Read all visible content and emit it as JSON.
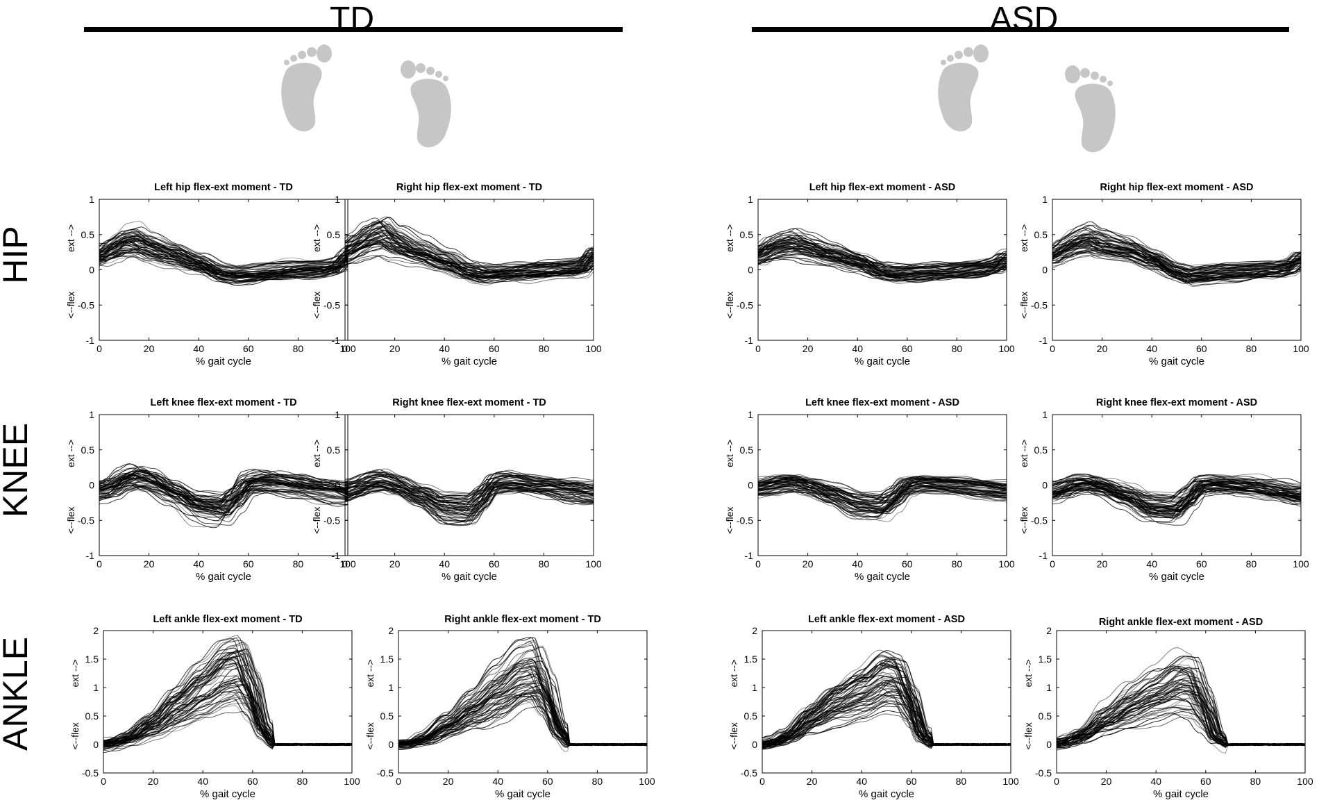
{
  "groups": [
    {
      "name": "TD"
    },
    {
      "name": "ASD"
    }
  ],
  "rows": [
    {
      "label": "HIP"
    },
    {
      "label": "KNEE"
    },
    {
      "label": "ANKLE"
    }
  ],
  "colors": {
    "line": "#000000",
    "axis": "#000000",
    "foot": "#c6c6c6"
  },
  "icons": [
    "left-foot-icon",
    "right-foot-icon"
  ],
  "chart_data": [
    {
      "type": "line",
      "title": "Left hip flex-ext moment - TD",
      "xlabel": "% gait cycle",
      "ylabel_top": "ext -->",
      "ylabel_bottom": "<--flex",
      "xlim": [
        0,
        100
      ],
      "ylim": [
        -1,
        1
      ],
      "xticks": [
        0,
        20,
        40,
        60,
        80,
        100
      ],
      "yticks": [
        -1,
        -0.5,
        0,
        0.5,
        1
      ],
      "pattern": "hip",
      "side": "left",
      "group": "TD",
      "mean": {
        "x": [
          0,
          5,
          10,
          15,
          20,
          30,
          40,
          50,
          55,
          60,
          70,
          80,
          90,
          95,
          100
        ],
        "y": [
          0.2,
          0.3,
          0.4,
          0.42,
          0.33,
          0.22,
          0.1,
          -0.05,
          -0.07,
          -0.05,
          -0.02,
          0,
          0.02,
          0.05,
          0.2
        ]
      },
      "spread": 0.12,
      "n_curves": 60
    },
    {
      "type": "line",
      "title": "Right hip flex-ext moment - TD",
      "xlabel": "% gait cycle",
      "ylabel_top": "ext -->",
      "ylabel_bottom": "<--flex",
      "xlim": [
        0,
        100
      ],
      "ylim": [
        -1,
        1
      ],
      "xticks": [
        0,
        20,
        40,
        60,
        80,
        100
      ],
      "yticks": [
        -1,
        -0.5,
        0,
        0.5,
        1
      ],
      "pattern": "hip",
      "side": "right",
      "group": "TD",
      "mean": {
        "x": [
          0,
          5,
          10,
          15,
          20,
          30,
          40,
          50,
          55,
          60,
          70,
          80,
          90,
          95,
          100
        ],
        "y": [
          0.25,
          0.35,
          0.45,
          0.5,
          0.38,
          0.25,
          0.12,
          -0.02,
          -0.06,
          -0.05,
          -0.03,
          0,
          0.02,
          0.04,
          0.2
        ]
      },
      "spread": 0.12,
      "n_curves": 60
    },
    {
      "type": "line",
      "title": "Left hip flex-ext moment - ASD",
      "xlabel": "% gait cycle",
      "ylabel_top": "ext -->",
      "ylabel_bottom": "<--flex",
      "xlim": [
        0,
        100
      ],
      "ylim": [
        -1,
        1
      ],
      "xticks": [
        0,
        20,
        40,
        60,
        80,
        100
      ],
      "yticks": [
        -1,
        -0.5,
        0,
        0.5,
        1
      ],
      "pattern": "hip",
      "side": "left",
      "group": "ASD",
      "mean": {
        "x": [
          0,
          5,
          10,
          15,
          20,
          30,
          40,
          50,
          55,
          60,
          70,
          80,
          90,
          95,
          100
        ],
        "y": [
          0.2,
          0.3,
          0.35,
          0.38,
          0.32,
          0.22,
          0.12,
          -0.02,
          -0.05,
          -0.04,
          -0.02,
          0,
          0.02,
          0.05,
          0.15
        ]
      },
      "spread": 0.11,
      "n_curves": 60
    },
    {
      "type": "line",
      "title": "Right hip flex-ext moment - ASD",
      "xlabel": "% gait cycle",
      "ylabel_top": "ext -->",
      "ylabel_bottom": "<--flex",
      "xlim": [
        0,
        100
      ],
      "ylim": [
        -1,
        1
      ],
      "xticks": [
        0,
        20,
        40,
        60,
        80,
        100
      ],
      "yticks": [
        -1,
        -0.5,
        0,
        0.5,
        1
      ],
      "pattern": "hip",
      "side": "right",
      "group": "ASD",
      "mean": {
        "x": [
          0,
          5,
          10,
          15,
          20,
          30,
          40,
          50,
          55,
          60,
          70,
          80,
          90,
          95,
          100
        ],
        "y": [
          0.2,
          0.3,
          0.38,
          0.42,
          0.35,
          0.28,
          0.15,
          -0.02,
          -0.08,
          -0.06,
          -0.03,
          -0.02,
          0,
          0.04,
          0.15
        ]
      },
      "spread": 0.11,
      "n_curves": 60
    },
    {
      "type": "line",
      "title": "Left knee flex-ext moment - TD",
      "xlabel": "% gait cycle",
      "ylabel_top": "ext -->",
      "ylabel_bottom": "<--flex",
      "xlim": [
        0,
        100
      ],
      "ylim": [
        -1,
        1
      ],
      "xticks": [
        0,
        20,
        40,
        60,
        80,
        100
      ],
      "yticks": [
        -1,
        -0.5,
        0,
        0.5,
        1
      ],
      "pattern": "knee",
      "side": "left",
      "group": "TD",
      "mean": {
        "x": [
          0,
          5,
          10,
          15,
          20,
          30,
          40,
          50,
          55,
          60,
          65,
          70,
          80,
          90,
          100
        ],
        "y": [
          -0.1,
          -0.05,
          0.05,
          0.1,
          0.05,
          -0.12,
          -0.3,
          -0.35,
          -0.2,
          0,
          0.03,
          0.02,
          -0.02,
          -0.07,
          -0.12
        ]
      },
      "spread": 0.14,
      "n_curves": 60
    },
    {
      "type": "line",
      "title": "Right knee flex-ext moment - TD",
      "xlabel": "% gait cycle",
      "ylabel_top": "ext -->",
      "ylabel_bottom": "<--flex",
      "xlim": [
        0,
        100
      ],
      "ylim": [
        -1,
        1
      ],
      "xticks": [
        0,
        20,
        40,
        60,
        80,
        100
      ],
      "yticks": [
        -1,
        -0.5,
        0,
        0.5,
        1
      ],
      "pattern": "knee",
      "side": "right",
      "group": "TD",
      "mean": {
        "x": [
          0,
          5,
          10,
          15,
          20,
          30,
          40,
          50,
          55,
          60,
          65,
          70,
          80,
          90,
          100
        ],
        "y": [
          -0.1,
          -0.05,
          0.02,
          0.05,
          0.0,
          -0.15,
          -0.32,
          -0.35,
          -0.2,
          0,
          0.03,
          0.02,
          -0.02,
          -0.07,
          -0.12
        ]
      },
      "spread": 0.14,
      "n_curves": 60
    },
    {
      "type": "line",
      "title": "Left knee flex-ext moment - ASD",
      "xlabel": "% gait cycle",
      "ylabel_top": "ext -->",
      "ylabel_bottom": "<--flex",
      "xlim": [
        0,
        100
      ],
      "ylim": [
        -1,
        1
      ],
      "xticks": [
        0,
        20,
        40,
        60,
        80,
        100
      ],
      "yticks": [
        -1,
        -0.5,
        0,
        0.5,
        1
      ],
      "pattern": "knee",
      "side": "left",
      "group": "ASD",
      "mean": {
        "x": [
          0,
          5,
          10,
          15,
          20,
          30,
          40,
          50,
          55,
          60,
          65,
          70,
          80,
          90,
          100
        ],
        "y": [
          -0.05,
          -0.02,
          0.02,
          0.03,
          -0.02,
          -0.15,
          -0.3,
          -0.33,
          -0.2,
          -0.02,
          0.02,
          0.01,
          -0.02,
          -0.06,
          -0.1
        ]
      },
      "spread": 0.11,
      "n_curves": 60
    },
    {
      "type": "line",
      "title": "Right knee flex-ext moment - ASD",
      "xlabel": "% gait cycle",
      "ylabel_top": "ext -->",
      "ylabel_bottom": "<--flex",
      "xlim": [
        0,
        100
      ],
      "ylim": [
        -1,
        1
      ],
      "xticks": [
        0,
        20,
        40,
        60,
        80,
        100
      ],
      "yticks": [
        -1,
        -0.5,
        0,
        0.5,
        1
      ],
      "pattern": "knee",
      "side": "right",
      "group": "ASD",
      "mean": {
        "x": [
          0,
          5,
          10,
          15,
          20,
          30,
          40,
          50,
          55,
          60,
          65,
          70,
          80,
          90,
          100
        ],
        "y": [
          -0.1,
          -0.05,
          0.02,
          0.03,
          -0.02,
          -0.15,
          -0.3,
          -0.32,
          -0.18,
          0,
          0.02,
          0.01,
          -0.02,
          -0.07,
          -0.14
        ]
      },
      "spread": 0.12,
      "n_curves": 60
    },
    {
      "type": "line",
      "title": "Left ankle flex-ext moment - TD",
      "xlabel": "% gait cycle",
      "ylabel_top": "ext -->",
      "ylabel_bottom": "<--flex",
      "xlim": [
        0,
        100
      ],
      "ylim": [
        -0.5,
        2
      ],
      "xticks": [
        0,
        20,
        40,
        60,
        80,
        100
      ],
      "yticks": [
        -0.5,
        0,
        0.5,
        1,
        1.5,
        2
      ],
      "pattern": "ankle",
      "side": "left",
      "group": "TD",
      "mean": {
        "x": [
          0,
          5,
          10,
          20,
          30,
          40,
          50,
          55,
          60,
          65,
          70,
          80,
          90,
          100
        ],
        "y": [
          0,
          0.02,
          0.1,
          0.35,
          0.65,
          0.95,
          1.25,
          1.3,
          0.9,
          0.25,
          0.0,
          0.0,
          0.0,
          0.0
        ]
      },
      "spread": 0.22,
      "n_curves": 60
    },
    {
      "type": "line",
      "title": "Right ankle flex-ext moment - TD",
      "xlabel": "% gait cycle",
      "ylabel_top": "ext -->",
      "ylabel_bottom": "<--flex",
      "xlim": [
        0,
        100
      ],
      "ylim": [
        -0.5,
        2
      ],
      "xticks": [
        0,
        20,
        40,
        60,
        80,
        100
      ],
      "yticks": [
        -0.5,
        0,
        0.5,
        1,
        1.5,
        2
      ],
      "pattern": "ankle",
      "side": "right",
      "group": "TD",
      "mean": {
        "x": [
          0,
          5,
          10,
          20,
          30,
          40,
          50,
          55,
          60,
          65,
          70,
          80,
          90,
          100
        ],
        "y": [
          0,
          0.02,
          0.1,
          0.35,
          0.65,
          0.95,
          1.25,
          1.3,
          0.9,
          0.25,
          0.0,
          0.0,
          0.0,
          0.0
        ]
      },
      "spread": 0.22,
      "n_curves": 60
    },
    {
      "type": "line",
      "title": "Left ankle flex-ext moment - ASD",
      "xlabel": "% gait cycle",
      "ylabel_top": "ext -->",
      "ylabel_bottom": "<--flex",
      "xlim": [
        0,
        100
      ],
      "ylim": [
        -0.5,
        2
      ],
      "xticks": [
        0,
        20,
        40,
        60,
        80,
        100
      ],
      "yticks": [
        -0.5,
        0,
        0.5,
        1,
        1.5,
        2
      ],
      "pattern": "ankle",
      "side": "left",
      "group": "ASD",
      "mean": {
        "x": [
          0,
          5,
          10,
          20,
          30,
          40,
          50,
          55,
          60,
          65,
          70,
          80,
          90,
          100
        ],
        "y": [
          0,
          0.05,
          0.15,
          0.45,
          0.7,
          0.9,
          1.15,
          1.1,
          0.7,
          0.15,
          0.0,
          0.0,
          0.0,
          0.0
        ]
      },
      "spread": 0.2,
      "n_curves": 60
    },
    {
      "type": "line",
      "title": "Right ankle flex-ext moment - ASD",
      "xlabel": "% gait cycle",
      "ylabel_top": "ext -->",
      "ylabel_bottom": "<--flex",
      "xlim": [
        0,
        100
      ],
      "ylim": [
        -0.5,
        2
      ],
      "xticks": [
        0,
        20,
        40,
        60,
        80,
        100
      ],
      "yticks": [
        -0.5,
        0,
        0.5,
        1,
        1.5,
        2
      ],
      "pattern": "ankle",
      "side": "right",
      "group": "ASD",
      "mean": {
        "x": [
          0,
          5,
          10,
          20,
          30,
          40,
          50,
          55,
          60,
          65,
          70,
          80,
          90,
          100
        ],
        "y": [
          0,
          0.05,
          0.15,
          0.45,
          0.7,
          0.9,
          1.1,
          1.05,
          0.65,
          0.12,
          0.0,
          0.0,
          0.0,
          0.0
        ]
      },
      "spread": 0.2,
      "n_curves": 60
    }
  ]
}
